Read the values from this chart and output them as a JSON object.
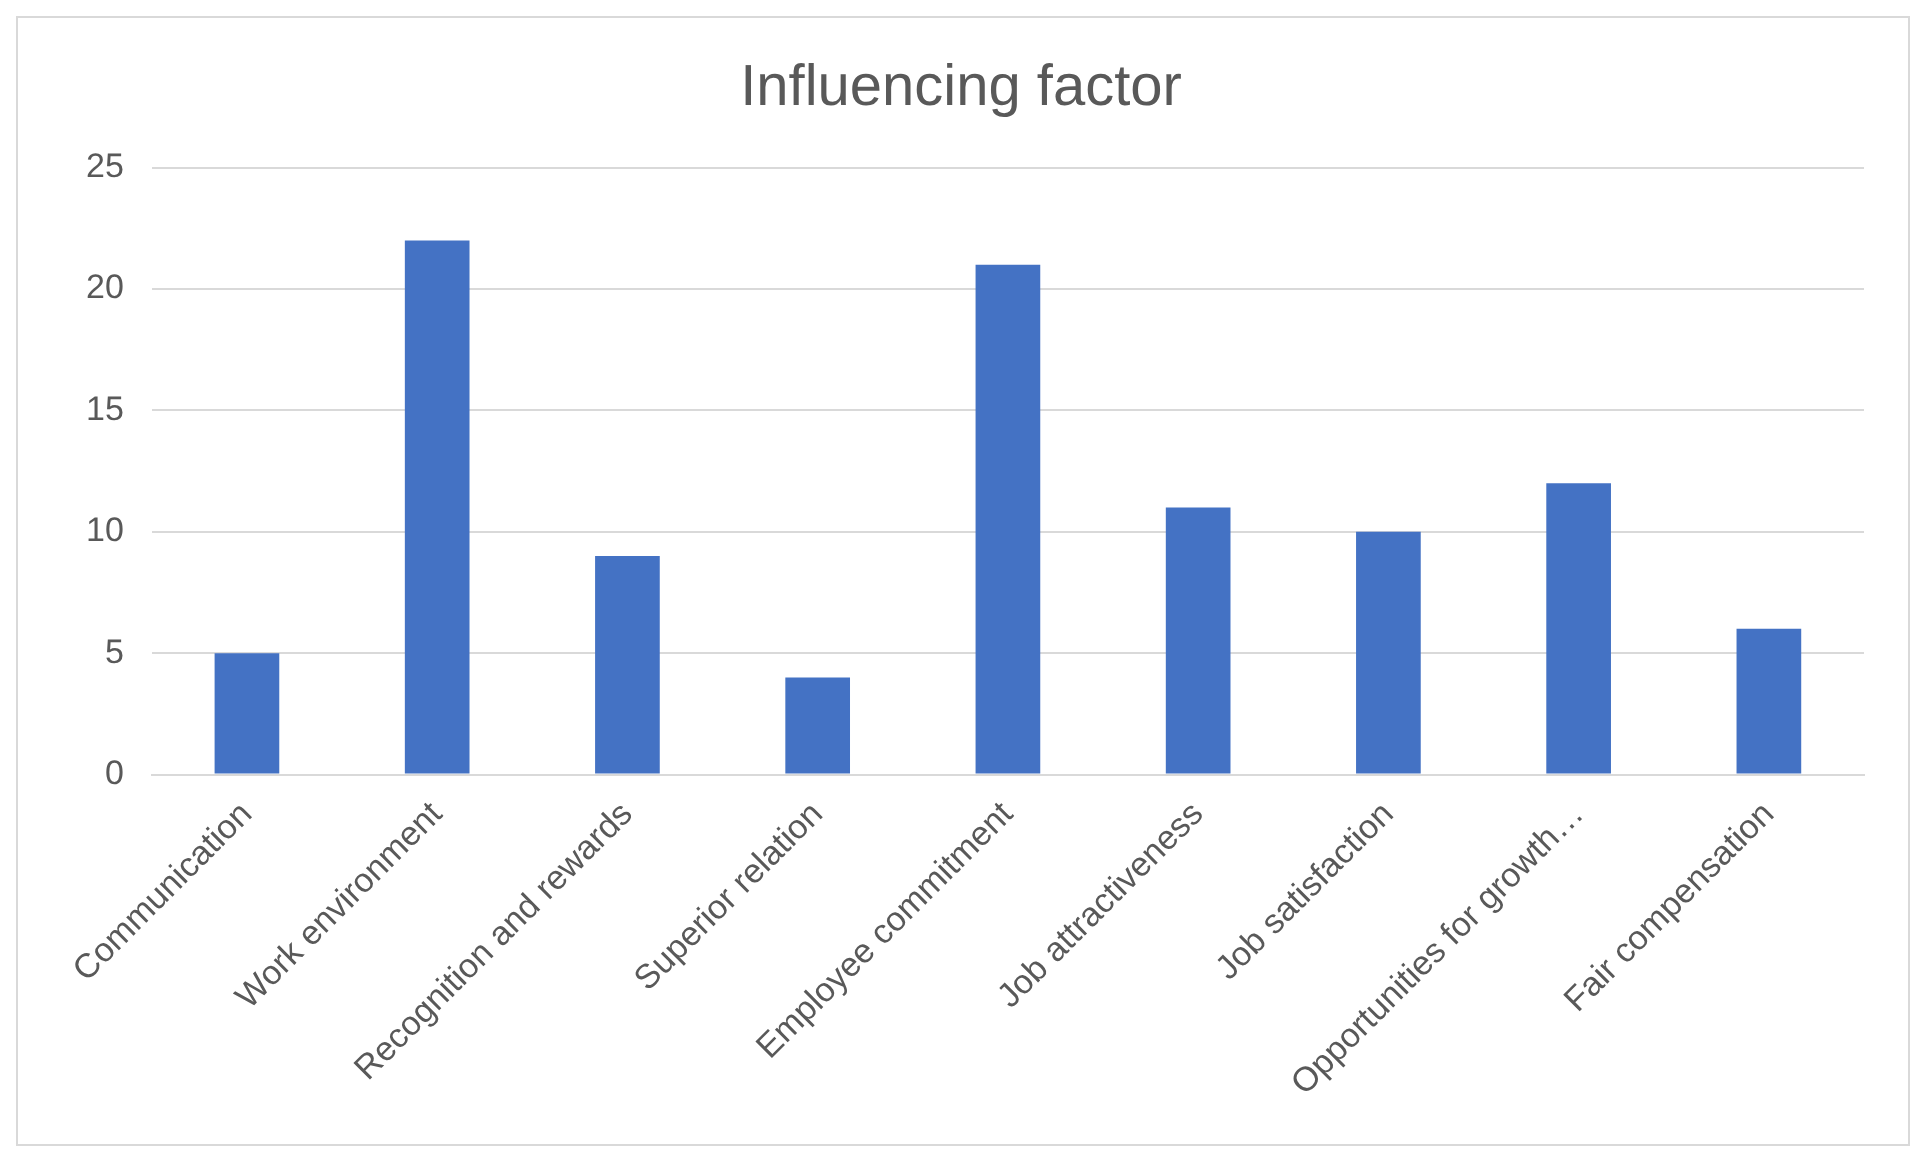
{
  "chart_data": {
    "type": "bar",
    "title": "Influencing factor",
    "categories": [
      "Communication",
      "Work environment",
      "Recognition and rewards",
      "Superior relation",
      "Employee commitment",
      "Job attractiveness",
      "Job satisfaction",
      "Opportunities for growth…",
      "Fair compensation"
    ],
    "values": [
      5,
      22,
      9,
      4,
      21,
      11,
      10,
      12,
      6
    ],
    "color": "#4472c4",
    "ylim": [
      0,
      25
    ],
    "yticks": [
      0,
      5,
      10,
      15,
      20,
      25
    ],
    "grid": "y",
    "legend": false
  }
}
